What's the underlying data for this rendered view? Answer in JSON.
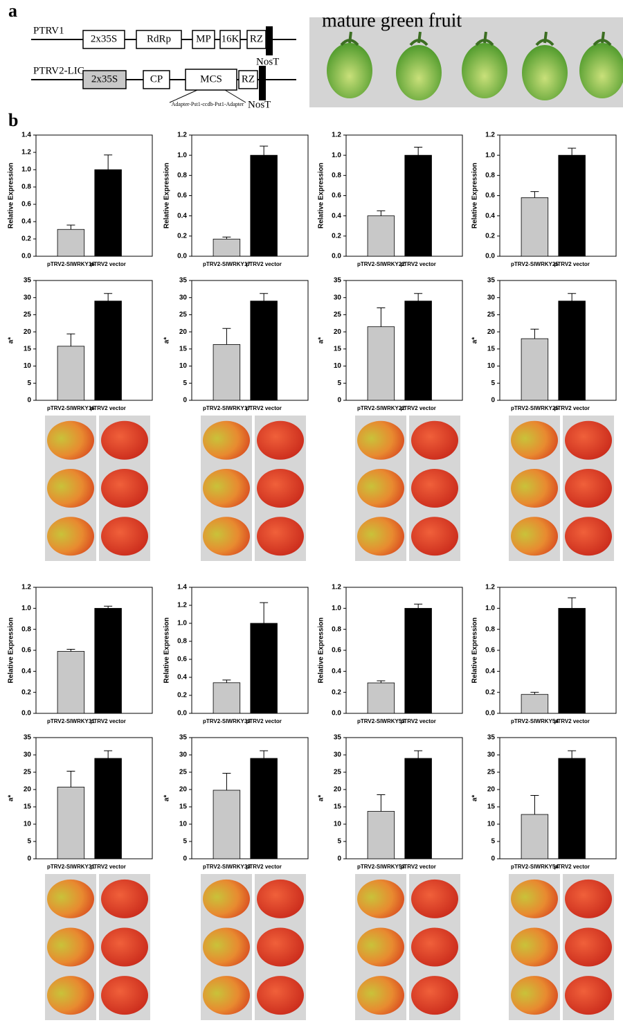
{
  "panel_labels": [
    "a",
    "b"
  ],
  "photo_label": "mature green fruit",
  "diagram": {
    "constructs": [
      {
        "name": "PTRV1",
        "elements": [
          "2x35S",
          "RdRp",
          "MP",
          "16K",
          "RZ"
        ],
        "terminator": "NosT"
      },
      {
        "name": "PTRV2-LIC",
        "elements": [
          "2x35S",
          "CP",
          "MCS",
          "RZ"
        ],
        "terminator": "NosT"
      }
    ],
    "insert": "Adapter-Pst1-ccdb-Pst1-Adapter"
  },
  "chart_data": [
    {
      "type": "bar",
      "ylabel": "Relative Expression",
      "categories": [
        "pTRV2-SlWRKY16",
        "pTRV2 vector"
      ],
      "values": [
        0.31,
        1.0
      ],
      "errors": [
        0.05,
        0.17
      ],
      "colors": [
        "#c8c8c8",
        "#000000"
      ],
      "ylim": [
        0,
        1.4
      ],
      "yticks": [
        {
          "value": 0,
          "label": "0.0"
        },
        {
          "value": 0.2,
          "label": "0.2"
        },
        {
          "value": 0.4,
          "label": "0.4"
        },
        {
          "value": 0.6,
          "label": "0.6"
        },
        {
          "value": 0.8,
          "label": "0.8"
        },
        {
          "value": 1,
          "label": "1.0"
        },
        {
          "value": 1.2,
          "label": "1.2"
        },
        {
          "value": 1.4,
          "label": "1.4"
        }
      ]
    },
    {
      "type": "bar",
      "ylabel": "Relative Expression",
      "categories": [
        "pTRV2-SlWRKY17",
        "pTRV2 vector"
      ],
      "values": [
        0.17,
        1.0
      ],
      "errors": [
        0.02,
        0.09
      ],
      "colors": [
        "#c8c8c8",
        "#000000"
      ],
      "ylim": [
        0,
        1.2
      ],
      "yticks": [
        {
          "value": 0,
          "label": "0.0"
        },
        {
          "value": 0.2,
          "label": "0.2"
        },
        {
          "value": 0.4,
          "label": "0.4"
        },
        {
          "value": 0.6,
          "label": "0.6"
        },
        {
          "value": 0.8,
          "label": "0.8"
        },
        {
          "value": 1,
          "label": "1.0"
        },
        {
          "value": 1.2,
          "label": "1.2"
        }
      ]
    },
    {
      "type": "bar",
      "ylabel": "Relative Expression",
      "categories": [
        "pTRV2-SlWRKY22",
        "pTRV2 vector"
      ],
      "values": [
        0.4,
        1.0
      ],
      "errors": [
        0.05,
        0.08
      ],
      "colors": [
        "#c8c8c8",
        "#000000"
      ],
      "ylim": [
        0,
        1.2
      ],
      "yticks": [
        {
          "value": 0,
          "label": "0.0"
        },
        {
          "value": 0.2,
          "label": "0.2"
        },
        {
          "value": 0.4,
          "label": "0.4"
        },
        {
          "value": 0.6,
          "label": "0.6"
        },
        {
          "value": 0.8,
          "label": "0.8"
        },
        {
          "value": 1,
          "label": "1.0"
        },
        {
          "value": 1.2,
          "label": "1.2"
        }
      ]
    },
    {
      "type": "bar",
      "ylabel": "Relative Expression",
      "categories": [
        "pTRV2-SlWRKY25",
        "pTRV2 vector"
      ],
      "values": [
        0.58,
        1.0
      ],
      "errors": [
        0.06,
        0.07
      ],
      "colors": [
        "#c8c8c8",
        "#000000"
      ],
      "ylim": [
        0,
        1.2
      ],
      "yticks": [
        {
          "value": 0,
          "label": "0.0"
        },
        {
          "value": 0.2,
          "label": "0.2"
        },
        {
          "value": 0.4,
          "label": "0.4"
        },
        {
          "value": 0.6,
          "label": "0.6"
        },
        {
          "value": 0.8,
          "label": "0.8"
        },
        {
          "value": 1,
          "label": "1.0"
        },
        {
          "value": 1.2,
          "label": "1.2"
        }
      ]
    },
    {
      "type": "bar",
      "ylabel": "a*",
      "categories": [
        "pTRV2-SlWRKY16",
        "pTRV2 vector"
      ],
      "values": [
        15.8,
        29
      ],
      "errors": [
        3.6,
        2.2
      ],
      "colors": [
        "#c8c8c8",
        "#000000"
      ],
      "ylim": [
        0,
        35
      ],
      "yticks": [
        0,
        5,
        10,
        15,
        20,
        25,
        30,
        35
      ]
    },
    {
      "type": "bar",
      "ylabel": "a*",
      "categories": [
        "pTRV2-SlWRKY17",
        "pTRV2 vector"
      ],
      "values": [
        16.3,
        29
      ],
      "errors": [
        4.7,
        2.2
      ],
      "colors": [
        "#c8c8c8",
        "#000000"
      ],
      "ylim": [
        0,
        35
      ],
      "yticks": [
        0,
        5,
        10,
        15,
        20,
        25,
        30,
        35
      ]
    },
    {
      "type": "bar",
      "ylabel": "a*",
      "categories": [
        "pTRV2-SlWRKY22",
        "pTRV2 vector"
      ],
      "values": [
        21.5,
        29
      ],
      "errors": [
        5.5,
        2.2
      ],
      "colors": [
        "#c8c8c8",
        "#000000"
      ],
      "ylim": [
        0,
        35
      ],
      "yticks": [
        0,
        5,
        10,
        15,
        20,
        25,
        30,
        35
      ]
    },
    {
      "type": "bar",
      "ylabel": "a*",
      "categories": [
        "pTRV2-SlWRKY25",
        "pTRV2 vector"
      ],
      "values": [
        18,
        29
      ],
      "errors": [
        2.8,
        2.2
      ],
      "colors": [
        "#c8c8c8",
        "#000000"
      ],
      "ylim": [
        0,
        35
      ],
      "yticks": [
        0,
        5,
        10,
        15,
        20,
        25,
        30,
        35
      ]
    },
    {
      "type": "bar",
      "ylabel": "Relative Expression",
      "categories": [
        "pTRV2-SlWRKY31",
        "pTRV2 vector"
      ],
      "values": [
        0.59,
        1.0
      ],
      "errors": [
        0.02,
        0.02
      ],
      "colors": [
        "#c8c8c8",
        "#000000"
      ],
      "ylim": [
        0,
        1.2
      ],
      "yticks": [
        {
          "value": 0,
          "label": "0.0"
        },
        {
          "value": 0.2,
          "label": "0.2"
        },
        {
          "value": 0.4,
          "label": "0.4"
        },
        {
          "value": 0.6,
          "label": "0.6"
        },
        {
          "value": 0.8,
          "label": "0.8"
        },
        {
          "value": 1,
          "label": "1.0"
        },
        {
          "value": 1.2,
          "label": "1.2"
        }
      ]
    },
    {
      "type": "bar",
      "ylabel": "Relative Expression",
      "categories": [
        "pTRV2-SlWRKY33",
        "pTRV2 vector"
      ],
      "values": [
        0.34,
        1.0
      ],
      "errors": [
        0.03,
        0.23
      ],
      "colors": [
        "#c8c8c8",
        "#000000"
      ],
      "ylim": [
        0,
        1.4
      ],
      "yticks": [
        {
          "value": 0,
          "label": "0.0"
        },
        {
          "value": 0.2,
          "label": "0.2"
        },
        {
          "value": 0.4,
          "label": "0.4"
        },
        {
          "value": 0.6,
          "label": "0.6"
        },
        {
          "value": 0.8,
          "label": "0.8"
        },
        {
          "value": 1,
          "label": "1.0"
        },
        {
          "value": 1.2,
          "label": "1.2"
        },
        {
          "value": 1.4,
          "label": "1.4"
        }
      ]
    },
    {
      "type": "bar",
      "ylabel": "Relative Expression",
      "categories": [
        "pTRV2-SlWRKY53",
        "pTRV2 vector"
      ],
      "values": [
        0.29,
        1.0
      ],
      "errors": [
        0.02,
        0.04
      ],
      "colors": [
        "#c8c8c8",
        "#000000"
      ],
      "ylim": [
        0,
        1.2
      ],
      "yticks": [
        {
          "value": 0,
          "label": "0.0"
        },
        {
          "value": 0.2,
          "label": "0.2"
        },
        {
          "value": 0.4,
          "label": "0.4"
        },
        {
          "value": 0.6,
          "label": "0.6"
        },
        {
          "value": 0.8,
          "label": "0.8"
        },
        {
          "value": 1,
          "label": "1.0"
        },
        {
          "value": 1.2,
          "label": "1.2"
        }
      ]
    },
    {
      "type": "bar",
      "ylabel": "Relative Expression",
      "categories": [
        "pTRV2-SlWRKY54",
        "pTRV2 vector"
      ],
      "values": [
        0.18,
        1.0
      ],
      "errors": [
        0.02,
        0.1
      ],
      "colors": [
        "#c8c8c8",
        "#000000"
      ],
      "ylim": [
        0,
        1.2
      ],
      "yticks": [
        {
          "value": 0,
          "label": "0.0"
        },
        {
          "value": 0.2,
          "label": "0.2"
        },
        {
          "value": 0.4,
          "label": "0.4"
        },
        {
          "value": 0.6,
          "label": "0.6"
        },
        {
          "value": 0.8,
          "label": "0.8"
        },
        {
          "value": 1,
          "label": "1.0"
        },
        {
          "value": 1.2,
          "label": "1.2"
        }
      ]
    },
    {
      "type": "bar",
      "ylabel": "a*",
      "categories": [
        "pTRV2-SlWRKY31",
        "pTRV2 vector"
      ],
      "values": [
        20.7,
        29
      ],
      "errors": [
        4.6,
        2.2
      ],
      "colors": [
        "#c8c8c8",
        "#000000"
      ],
      "ylim": [
        0,
        35
      ],
      "yticks": [
        0,
        5,
        10,
        15,
        20,
        25,
        30,
        35
      ]
    },
    {
      "type": "bar",
      "ylabel": "a*",
      "categories": [
        "pTRV2-SlWRKY33",
        "pTRV2 vector"
      ],
      "values": [
        19.8,
        29
      ],
      "errors": [
        4.9,
        2.2
      ],
      "colors": [
        "#c8c8c8",
        "#000000"
      ],
      "ylim": [
        0,
        35
      ],
      "yticks": [
        0,
        5,
        10,
        15,
        20,
        25,
        30,
        35
      ]
    },
    {
      "type": "bar",
      "ylabel": "a*",
      "categories": [
        "pTRV2-SlWRKY53",
        "pTRV2 vector"
      ],
      "values": [
        13.7,
        29
      ],
      "errors": [
        4.8,
        2.2
      ],
      "colors": [
        "#c8c8c8",
        "#000000"
      ],
      "ylim": [
        0,
        35
      ],
      "yticks": [
        0,
        5,
        10,
        15,
        20,
        25,
        30,
        35
      ]
    },
    {
      "type": "bar",
      "ylabel": "a*",
      "categories": [
        "pTRV2-SlWRKY54",
        "pTRV2 vector"
      ],
      "values": [
        12.8,
        29
      ],
      "errors": [
        5.5,
        2.2
      ],
      "colors": [
        "#c8c8c8",
        "#000000"
      ],
      "ylim": [
        0,
        35
      ],
      "yticks": [
        0,
        5,
        10,
        15,
        20,
        25,
        30,
        35
      ]
    }
  ]
}
